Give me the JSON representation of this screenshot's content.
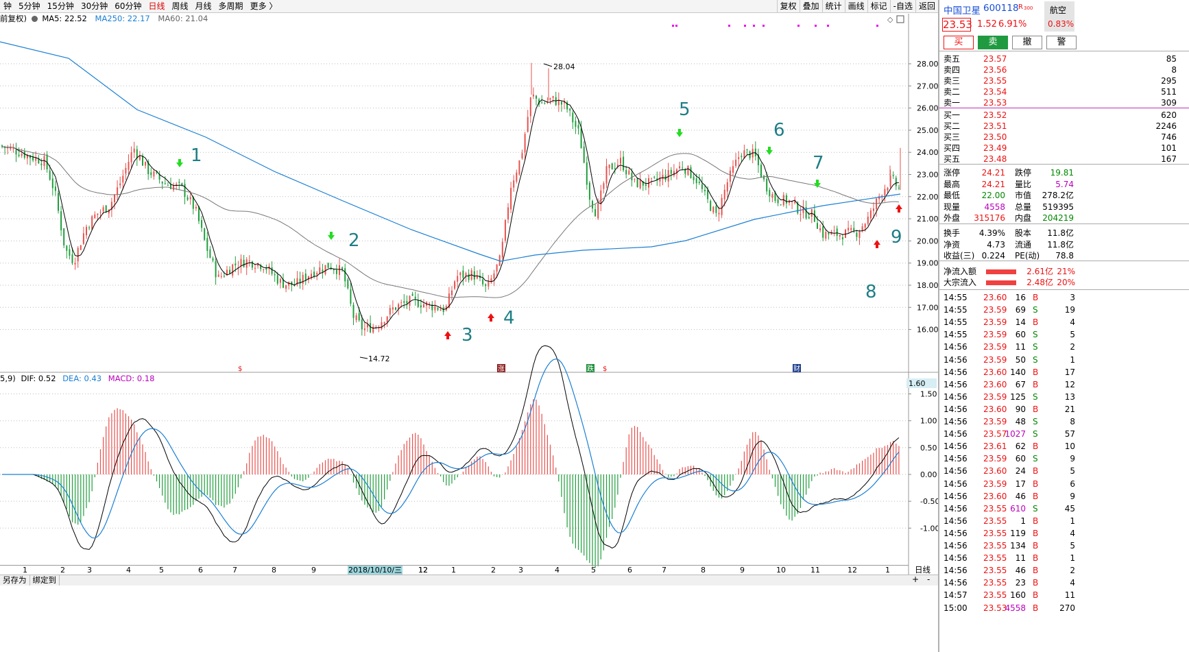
{
  "toolbar": {
    "periods": [
      "钟",
      "5分钟",
      "15分钟",
      "30分钟",
      "60分钟",
      "日线",
      "周线",
      "月线",
      "多周期",
      "更多 〉"
    ],
    "active_period": "日线",
    "tools": [
      "复权",
      "叠加",
      "统计",
      "画线",
      "标记",
      "-自选",
      "返回"
    ]
  },
  "legend_top": {
    "prefix": "前复权)",
    "ma5": "MA5: 22.52",
    "ma250": "MA250: 22.17",
    "ma60": "MA60: 21.04"
  },
  "legend_macd": {
    "prefix": "5,9)",
    "dif": "DIF: 0.52",
    "dea": "DEA: 0.43",
    "macd": "MACD: 0.18"
  },
  "price_axis": [
    "28.00",
    "27.00",
    "26.00",
    "25.00",
    "24.00",
    "23.00",
    "22.00",
    "21.00",
    "20.00",
    "19.00",
    "18.00",
    "17.00",
    "16.00"
  ],
  "macd_axis": [
    "1.50",
    "1.00",
    "0.50",
    "0.00",
    "-0.50",
    "-1.00"
  ],
  "macd_axis_top": "1.60",
  "x_labels": [
    "1",
    "2",
    "3",
    "4",
    "5",
    "6",
    "7",
    "8",
    "9",
    "11",
    "12",
    "1",
    "2",
    "3",
    "4",
    "5",
    "6",
    "7",
    "8",
    "9",
    "10",
    "11",
    "12",
    "1"
  ],
  "date_tag": "2018/10/10/三",
  "period_tag": "日线",
  "annotations": {
    "high": "28.04",
    "low": "14.72",
    "numbers": [
      "1",
      "2",
      "3",
      "4",
      "5",
      "6",
      "7",
      "8",
      "9"
    ]
  },
  "event_markers": [
    "$",
    "涨",
    "跌",
    "$",
    "财"
  ],
  "bottom_tabs": [
    "另存为",
    "绑定到"
  ],
  "bottom_right_buttons": [
    "+",
    "-"
  ],
  "stock": {
    "name": "中国卫星",
    "code": "600118",
    "tag": "R",
    "tag_small": "300",
    "sector": "航空",
    "sector_pct": "0.83%",
    "price": "23.53",
    "change": "1.52",
    "pct": "6.91%"
  },
  "trade_buttons": [
    "买",
    "卖",
    "撤",
    "警"
  ],
  "asks": [
    {
      "label": "卖五",
      "price": "23.57",
      "vol": "85"
    },
    {
      "label": "卖四",
      "price": "23.56",
      "vol": "8"
    },
    {
      "label": "卖三",
      "price": "23.55",
      "vol": "295"
    },
    {
      "label": "卖二",
      "price": "23.54",
      "vol": "511"
    },
    {
      "label": "卖一",
      "price": "23.53",
      "vol": "309"
    }
  ],
  "bids": [
    {
      "label": "买一",
      "price": "23.52",
      "vol": "620"
    },
    {
      "label": "买二",
      "price": "23.51",
      "vol": "2246"
    },
    {
      "label": "买三",
      "price": "23.50",
      "vol": "746"
    },
    {
      "label": "买四",
      "price": "23.49",
      "vol": "101"
    },
    {
      "label": "买五",
      "price": "23.48",
      "vol": "167"
    }
  ],
  "stats": [
    {
      "l1": "涨停",
      "v1": "24.21",
      "l2": "跌停",
      "v2": "19.81"
    },
    {
      "l1": "最高",
      "v1": "24.21",
      "l2": "量比",
      "v2": "5.74"
    },
    {
      "l1": "最低",
      "v1": "22.00",
      "l2": "市值",
      "v2": "278.2亿"
    },
    {
      "l1": "现量",
      "v1": "4558",
      "l2": "总量",
      "v2": "519395"
    },
    {
      "l1": "外盘",
      "v1": "315176",
      "l2": "内盘",
      "v2": "204219"
    }
  ],
  "stats2": [
    {
      "l1": "换手",
      "v1": "4.39%",
      "l2": "股本",
      "v2": "11.8亿"
    },
    {
      "l1": "净资",
      "v1": "4.73",
      "l2": "流通",
      "v2": "11.8亿"
    },
    {
      "l1": "收益(三)",
      "v1": "0.224",
      "l2": "PE(动)",
      "v2": "78.8"
    }
  ],
  "flows": [
    {
      "label": "净流入额",
      "value": "2.61亿",
      "pct": "21%"
    },
    {
      "label": "大宗流入",
      "value": "2.48亿",
      "pct": "20%"
    }
  ],
  "ticks": [
    {
      "t": "14:55",
      "p": "23.60",
      "v": "16",
      "s": "B",
      "n": "3"
    },
    {
      "t": "14:55",
      "p": "23.59",
      "v": "69",
      "s": "S",
      "n": "19"
    },
    {
      "t": "14:55",
      "p": "23.59",
      "v": "14",
      "s": "B",
      "n": "4"
    },
    {
      "t": "14:55",
      "p": "23.59",
      "v": "60",
      "s": "S",
      "n": "5"
    },
    {
      "t": "14:56",
      "p": "23.59",
      "v": "11",
      "s": "S",
      "n": "2"
    },
    {
      "t": "14:56",
      "p": "23.59",
      "v": "50",
      "s": "S",
      "n": "1"
    },
    {
      "t": "14:56",
      "p": "23.60",
      "v": "140",
      "s": "B",
      "n": "17"
    },
    {
      "t": "14:56",
      "p": "23.60",
      "v": "67",
      "s": "B",
      "n": "12"
    },
    {
      "t": "14:56",
      "p": "23.59",
      "v": "125",
      "s": "S",
      "n": "13"
    },
    {
      "t": "14:56",
      "p": "23.60",
      "v": "90",
      "s": "B",
      "n": "21"
    },
    {
      "t": "14:56",
      "p": "23.59",
      "v": "48",
      "s": "S",
      "n": "8"
    },
    {
      "t": "14:56",
      "p": "23.57",
      "v": "1027",
      "s": "S",
      "n": "57"
    },
    {
      "t": "14:56",
      "p": "23.61",
      "v": "62",
      "s": "B",
      "n": "10"
    },
    {
      "t": "14:56",
      "p": "23.59",
      "v": "60",
      "s": "S",
      "n": "9"
    },
    {
      "t": "14:56",
      "p": "23.60",
      "v": "24",
      "s": "B",
      "n": "5"
    },
    {
      "t": "14:56",
      "p": "23.59",
      "v": "17",
      "s": "B",
      "n": "6"
    },
    {
      "t": "14:56",
      "p": "23.60",
      "v": "46",
      "s": "B",
      "n": "9"
    },
    {
      "t": "14:56",
      "p": "23.55",
      "v": "610",
      "s": "S",
      "n": "45"
    },
    {
      "t": "14:56",
      "p": "23.55",
      "v": "1",
      "s": "B",
      "n": "1"
    },
    {
      "t": "14:56",
      "p": "23.55",
      "v": "119",
      "s": "B",
      "n": "4"
    },
    {
      "t": "14:56",
      "p": "23.55",
      "v": "134",
      "s": "B",
      "n": "5"
    },
    {
      "t": "14:56",
      "p": "23.55",
      "v": "11",
      "s": "B",
      "n": "1"
    },
    {
      "t": "14:56",
      "p": "23.55",
      "v": "46",
      "s": "B",
      "n": "2"
    },
    {
      "t": "14:56",
      "p": "23.55",
      "v": "23",
      "s": "B",
      "n": "4"
    },
    {
      "t": "14:57",
      "p": "23.55",
      "v": "160",
      "s": "B",
      "n": "11"
    },
    {
      "t": "15:00",
      "p": "23.53",
      "v": "4558",
      "s": "B",
      "n": "270"
    }
  ],
  "colors": {
    "up": "#e11",
    "down": "#080",
    "ma250": "#1a7fd4",
    "dif": "#000",
    "dea": "#1a7fd4",
    "annot": "#1d7e86"
  }
}
